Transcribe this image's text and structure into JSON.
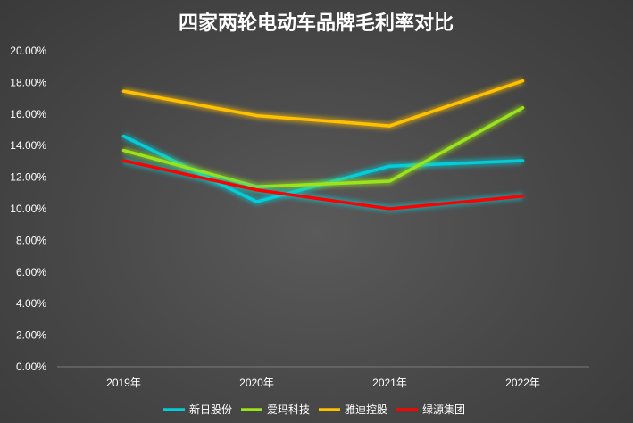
{
  "chart_data": {
    "type": "line",
    "title": "四家两轮电动车品牌毛利率对比",
    "xlabel": "",
    "ylabel": "",
    "categories": [
      "2019年",
      "2020年",
      "2021年",
      "2022年"
    ],
    "ylim": [
      0,
      0.2
    ],
    "yticks": [
      "0.00%",
      "2.00%",
      "4.00%",
      "6.00%",
      "8.00%",
      "10.00%",
      "12.00%",
      "14.00%",
      "16.00%",
      "18.00%",
      "20.00%"
    ],
    "grid": false,
    "legend_position": "bottom",
    "series": [
      {
        "name": "新日股份",
        "color": "#00CED9",
        "glow": "#00CED9",
        "values": [
          0.146,
          0.1045,
          0.127,
          0.1305
        ]
      },
      {
        "name": "爱玛科技",
        "color": "#9BE31A",
        "glow": "#9BE31A",
        "values": [
          0.137,
          0.114,
          0.1175,
          0.164
        ]
      },
      {
        "name": "雅迪控股",
        "color": "#FFC000",
        "glow": "#FFC000",
        "values": [
          0.1745,
          0.159,
          0.1525,
          0.181
        ]
      },
      {
        "name": "绿源集团",
        "color": "#FF0000",
        "glow": "#00CED9",
        "values": [
          0.1305,
          0.112,
          0.1,
          0.108
        ]
      }
    ]
  }
}
